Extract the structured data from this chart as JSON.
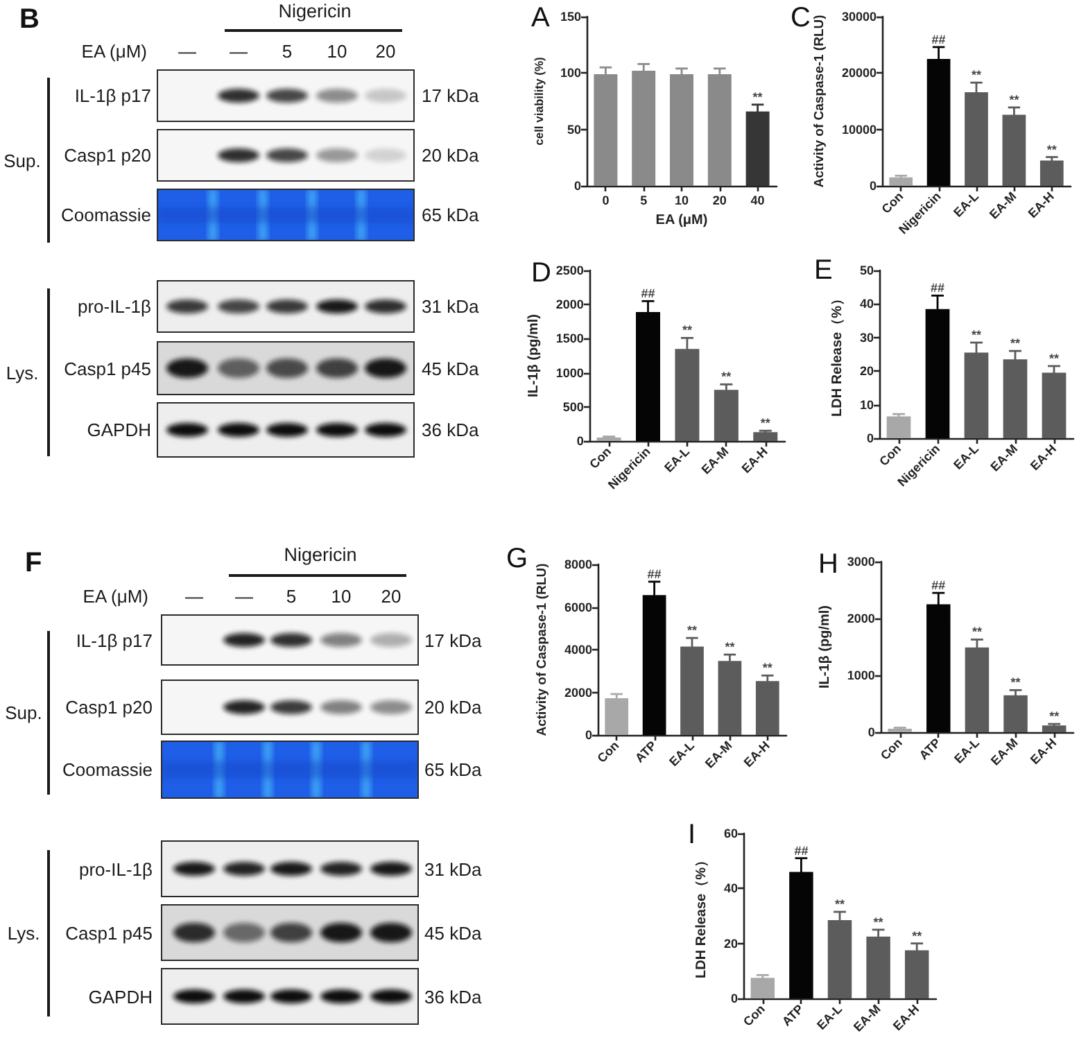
{
  "chart_data": [
    {
      "type": "other",
      "title": "B",
      "xlabel": "EA (μM)",
      "categories": [
        "—",
        "—",
        "5",
        "10",
        "20"
      ],
      "y_categories": [
        "IL-1β p17",
        "Casp1 p20",
        "Coomassie",
        "pro-IL-1β",
        "Casp1 p45",
        "GAPDH"
      ],
      "y2_categories": [
        "17 kDa",
        "20 kDa",
        "65 kDa",
        "31 kDa",
        "45 kDa",
        "36 kDa"
      ],
      "annotations": [
        "Nigericin",
        "Sup.",
        "Lys."
      ]
    },
    {
      "type": "bar",
      "title": "A",
      "xlabel": "EA (μM)",
      "ylabel": "cell viability (%)",
      "categories": [
        "0",
        "5",
        "10",
        "20",
        "40"
      ],
      "values": [
        99,
        102,
        99,
        99,
        66
      ],
      "errors": [
        6,
        6,
        5,
        5,
        6
      ],
      "colors": [
        "#8a8a8a",
        "#8a8a8a",
        "#8a8a8a",
        "#8a8a8a",
        "#363636"
      ],
      "ylim": [
        0,
        150
      ],
      "yticks": [
        0,
        50,
        100,
        150
      ],
      "annotations": [
        {
          "text": "**",
          "x": "40",
          "y": 72
        }
      ]
    },
    {
      "type": "bar",
      "title": "C",
      "ylabel": "Activity of Caspase-1 (RLU)",
      "categories": [
        "Con",
        "Nigericin",
        "EA-L",
        "EA-M",
        "EA-H"
      ],
      "values": [
        1500,
        22500,
        16600,
        12600,
        4500
      ],
      "errors": [
        300,
        2100,
        1700,
        1300,
        600
      ],
      "colors": [
        "#a8a8a8",
        "#050505",
        "#5c5c5c",
        "#5c5c5c",
        "#5c5c5c"
      ],
      "ylim": [
        0,
        30000
      ],
      "yticks": [
        0,
        10000,
        20000,
        30000
      ],
      "annotations": [
        {
          "text": "##",
          "x": "Nigericin",
          "y": 24600
        },
        {
          "text": "**",
          "x": "EA-L",
          "y": 18300
        },
        {
          "text": "**",
          "x": "EA-M",
          "y": 13900
        },
        {
          "text": "**",
          "x": "EA-H",
          "y": 5100
        }
      ]
    },
    {
      "type": "bar",
      "title": "D",
      "ylabel": "IL-1β (pg/ml)",
      "categories": [
        "Con",
        "Nigericin",
        "EA-L",
        "EA-M",
        "EA-H"
      ],
      "values": [
        50,
        1890,
        1350,
        750,
        130
      ],
      "errors": [
        15,
        160,
        160,
        80,
        20
      ],
      "colors": [
        "#a8a8a8",
        "#050505",
        "#5c5c5c",
        "#5c5c5c",
        "#5c5c5c"
      ],
      "ylim": [
        0,
        2500
      ],
      "yticks": [
        0,
        500,
        1000,
        1500,
        2000,
        2500
      ],
      "annotations": [
        {
          "text": "##",
          "x": "Nigericin",
          "y": 2050
        },
        {
          "text": "**",
          "x": "EA-L",
          "y": 1510
        },
        {
          "text": "**",
          "x": "EA-M",
          "y": 830
        },
        {
          "text": "**",
          "x": "EA-H",
          "y": 150
        }
      ]
    },
    {
      "type": "bar",
      "title": "E",
      "ylabel": "LDH Release（%）",
      "categories": [
        "Con",
        "Nigericin",
        "EA-L",
        "EA-M",
        "EA-H"
      ],
      "values": [
        6.5,
        38.5,
        25.5,
        23.5,
        19.5
      ],
      "errors": [
        0.7,
        4,
        3,
        2.5,
        2
      ],
      "colors": [
        "#a8a8a8",
        "#050505",
        "#5c5c5c",
        "#5c5c5c",
        "#5c5c5c"
      ],
      "ylim": [
        0,
        50
      ],
      "yticks": [
        0,
        10,
        20,
        30,
        40,
        50
      ],
      "annotations": [
        {
          "text": "##",
          "x": "Nigericin",
          "y": 42.5
        },
        {
          "text": "**",
          "x": "EA-L",
          "y": 28.5
        },
        {
          "text": "**",
          "x": "EA-M",
          "y": 26
        },
        {
          "text": "**",
          "x": "EA-H",
          "y": 21.5
        }
      ]
    },
    {
      "type": "other",
      "title": "F",
      "xlabel": "EA (μM)",
      "categories": [
        "—",
        "—",
        "5",
        "10",
        "20"
      ],
      "y_categories": [
        "IL-1β p17",
        "Casp1 p20",
        "Coomassie",
        "pro-IL-1β",
        "Casp1 p45",
        "GAPDH"
      ],
      "y2_categories": [
        "17 kDa",
        "20 kDa",
        "65 kDa",
        "31 kDa",
        "45 kDa",
        "36 kDa"
      ],
      "annotations": [
        "Nigericin",
        "Sup.",
        "Lys."
      ]
    },
    {
      "type": "bar",
      "title": "G",
      "ylabel": "Activity of Caspase-1 (RLU)",
      "categories": [
        "Con",
        "ATP",
        "EA-L",
        "EA-M",
        "EA-H"
      ],
      "values": [
        1720,
        6560,
        4150,
        3470,
        2530
      ],
      "errors": [
        200,
        630,
        400,
        300,
        260
      ],
      "colors": [
        "#a8a8a8",
        "#050505",
        "#5c5c5c",
        "#5c5c5c",
        "#5c5c5c"
      ],
      "ylim": [
        0,
        8000
      ],
      "yticks": [
        0,
        2000,
        4000,
        6000,
        8000
      ],
      "annotations": [
        {
          "text": "##",
          "x": "ATP",
          "y": 7190
        },
        {
          "text": "**",
          "x": "EA-L",
          "y": 4550
        },
        {
          "text": "**",
          "x": "EA-M",
          "y": 3770
        },
        {
          "text": "**",
          "x": "EA-H",
          "y": 2790
        }
      ]
    },
    {
      "type": "bar",
      "title": "H",
      "ylabel": "IL-1β (pg/ml)",
      "categories": [
        "Con",
        "ATP",
        "EA-L",
        "EA-M",
        "EA-H"
      ],
      "values": [
        60,
        2250,
        1490,
        650,
        120
      ],
      "errors": [
        20,
        200,
        140,
        90,
        25
      ],
      "colors": [
        "#a8a8a8",
        "#050505",
        "#5c5c5c",
        "#5c5c5c",
        "#5c5c5c"
      ],
      "ylim": [
        0,
        3000
      ],
      "yticks": [
        0,
        1000,
        2000,
        3000
      ],
      "annotations": [
        {
          "text": "##",
          "x": "ATP",
          "y": 2450
        },
        {
          "text": "**",
          "x": "EA-L",
          "y": 1630
        },
        {
          "text": "**",
          "x": "EA-M",
          "y": 740
        },
        {
          "text": "**",
          "x": "EA-H",
          "y": 145
        }
      ]
    },
    {
      "type": "bar",
      "title": "I",
      "ylabel": "LDH Release（%）",
      "categories": [
        "Con",
        "ATP",
        "EA-L",
        "EA-M",
        "EA-H"
      ],
      "values": [
        7.5,
        46,
        28.5,
        22.5,
        17.5
      ],
      "errors": [
        1,
        5,
        3,
        2.5,
        2.5
      ],
      "colors": [
        "#a8a8a8",
        "#050505",
        "#5c5c5c",
        "#5c5c5c",
        "#5c5c5c"
      ],
      "ylim": [
        0,
        60
      ],
      "yticks": [
        0,
        20,
        40,
        60
      ],
      "annotations": [
        {
          "text": "##",
          "x": "ATP",
          "y": 51
        },
        {
          "text": "**",
          "x": "EA-L",
          "y": 31.5
        },
        {
          "text": "**",
          "x": "EA-M",
          "y": 25
        },
        {
          "text": "**",
          "x": "EA-H",
          "y": 20
        }
      ]
    }
  ]
}
